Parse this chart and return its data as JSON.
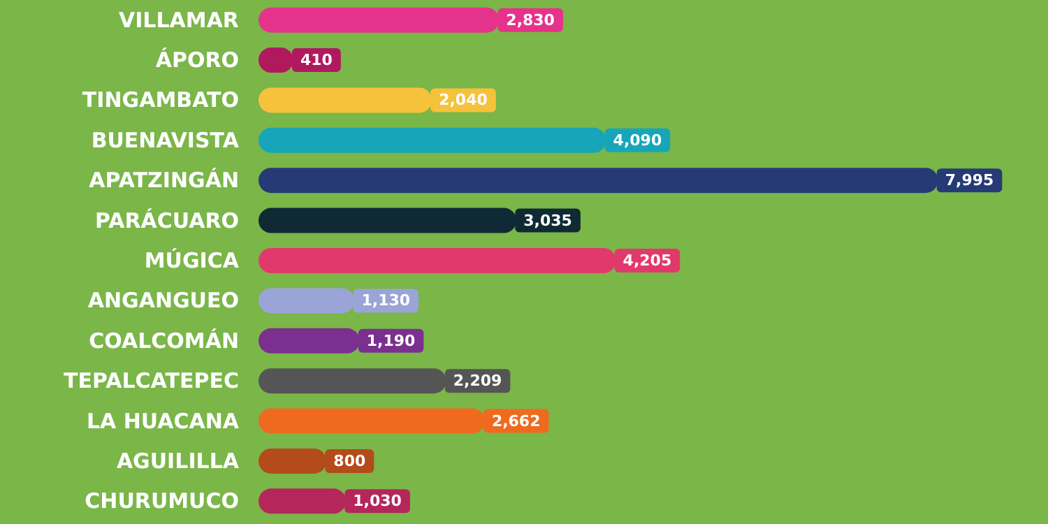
{
  "chart_data": {
    "type": "bar",
    "orientation": "horizontal",
    "value_labels": [
      "2,830",
      "410",
      "2,040",
      "4,090",
      "7,995",
      "3,035",
      "4,205",
      "1,130",
      "1,190",
      "2,209",
      "2,662",
      "800",
      "1,030"
    ],
    "categories": [
      "VILLAMAR",
      "ÁPORO",
      "TINGAMBATO",
      "BUENAVISTA",
      "APATZINGÁN",
      "PARÁCUARO",
      "MÚGICA",
      "ANGANGUEO",
      "COALCOMÁN",
      "TEPALCATEPEC",
      "LA HUACANA",
      "AGUILILLA",
      "CHURUMUCO"
    ],
    "values": [
      2830,
      410,
      2040,
      4090,
      7995,
      3035,
      4205,
      1130,
      1190,
      2209,
      2662,
      800,
      1030
    ],
    "colors": [
      "#e5338b",
      "#b1195f",
      "#f6c23b",
      "#17a6b9",
      "#263a75",
      "#0f2a34",
      "#e2396c",
      "#9aa4d7",
      "#7b2f8f",
      "#555555",
      "#ef6a1e",
      "#b34b1b",
      "#b5265b"
    ]
  }
}
